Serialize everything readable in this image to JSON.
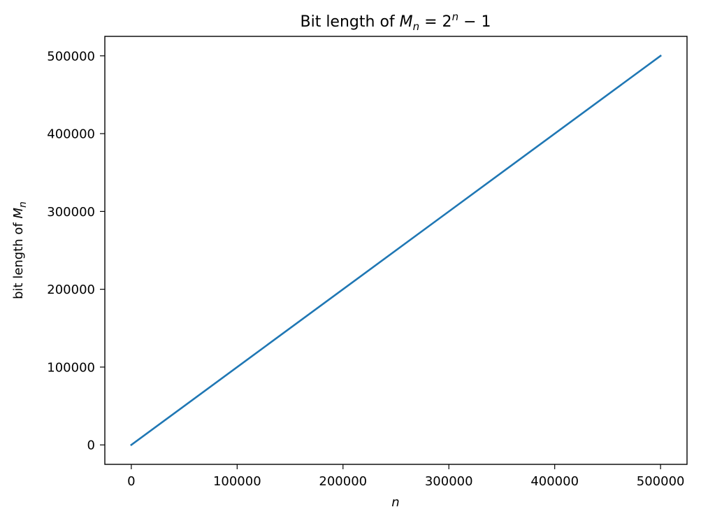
{
  "chart_data": {
    "type": "line",
    "title": {
      "prefix": "Bit length of ",
      "var": "M",
      "sub": "n",
      "eq": " = 2",
      "sup": "n",
      "suffix": " − 1"
    },
    "xlabel": "n",
    "ylabel": {
      "prefix": "bit length of ",
      "var": "M",
      "sub": "n"
    },
    "xlim": [
      -25000,
      525000
    ],
    "ylim": [
      -25000,
      525000
    ],
    "xticks": [
      0,
      100000,
      200000,
      300000,
      400000,
      500000
    ],
    "yticks": [
      0,
      100000,
      200000,
      300000,
      400000,
      500000
    ],
    "xtick_labels": [
      "0",
      "100000",
      "200000",
      "300000",
      "400000",
      "500000"
    ],
    "ytick_labels": [
      "0",
      "100000",
      "200000",
      "300000",
      "400000",
      "500000"
    ],
    "grid": false,
    "series": [
      {
        "color": "#1f77b4",
        "x": [
          1,
          500000
        ],
        "y": [
          1,
          500000
        ]
      }
    ]
  }
}
